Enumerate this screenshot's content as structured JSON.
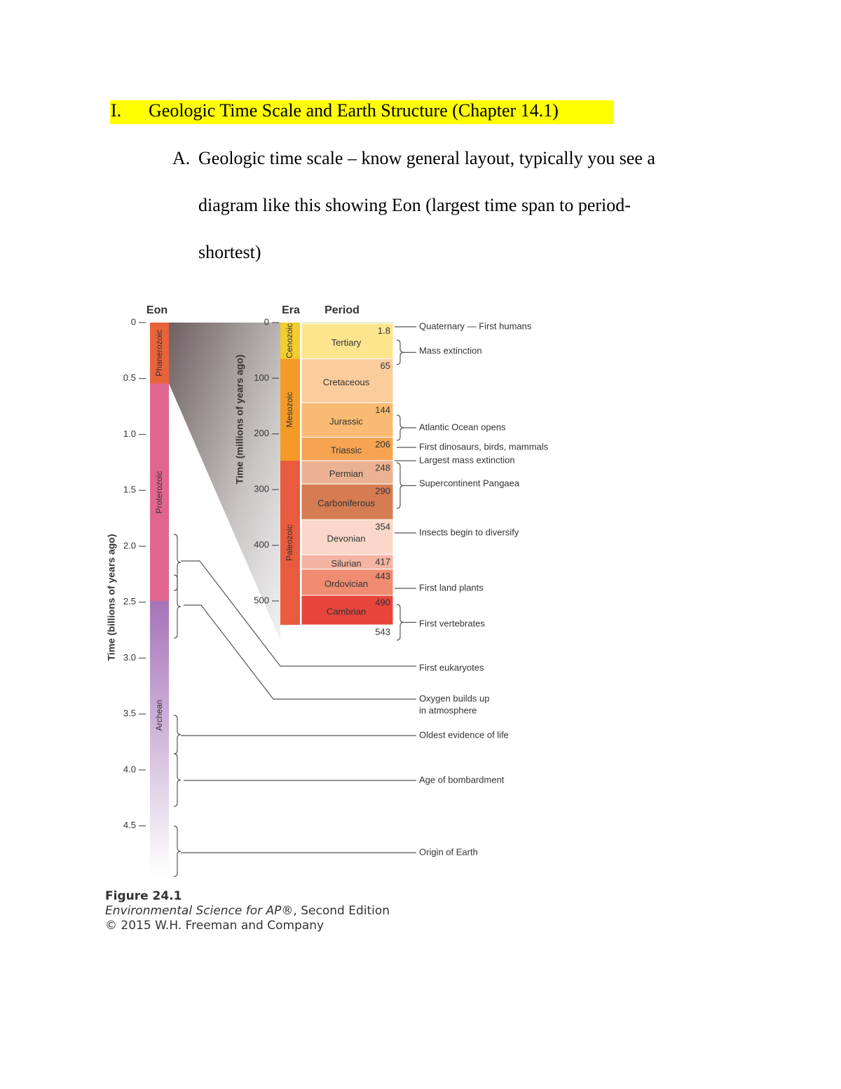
{
  "heading": {
    "number": "I.",
    "text": "Geologic Time Scale and Earth Structure (Chapter 14.1)"
  },
  "item": {
    "label": "A.",
    "lines": [
      "Geologic time scale – know general layout, typically you see a",
      "diagram like this showing Eon (largest time span to period-",
      "shortest)"
    ]
  },
  "figure": {
    "eon_header": "Eon",
    "era_header": "Era",
    "period_header": "Period",
    "left_axis_label": "Time (billions of years ago)",
    "left_ticks": [
      0,
      0.5,
      {
        "value": 1,
        "label": "1.0"
      },
      1.5,
      {
        "value": 2,
        "label": "2.0"
      },
      2.5,
      {
        "value": 3,
        "label": "3.0"
      },
      3.5,
      {
        "value": 4,
        "label": "4.0"
      },
      4.5
    ],
    "right_axis_label": "Time (millions of years ago)",
    "right_ticks": [
      0,
      100,
      200,
      300,
      400,
      500
    ],
    "eons": [
      "Phanerozoic",
      "Proterozoic",
      "Archean"
    ],
    "eras": [
      "Cenozoic",
      "Mesozoic",
      "Paleozoic"
    ],
    "boundaries": [
      1.8,
      65,
      144,
      206,
      248,
      290,
      354,
      417,
      443,
      490,
      543
    ],
    "periods": [
      "Tertiary",
      "Cretaceous",
      "Jurassic",
      "Triassic",
      "Permian",
      "Carboniferous",
      "Devonian",
      "Silurian",
      "Ordovician",
      "Cambrian"
    ],
    "events": [
      [
        "Quaternary — First humans"
      ],
      [
        "Mass extinction"
      ],
      [
        "Atlantic Ocean opens"
      ],
      [
        "First dinosaurs, birds, mammals"
      ],
      [
        "Largest mass extinction"
      ],
      [
        "Supercontinent Pangaea"
      ],
      [
        "Insects begin to diversify"
      ],
      [
        "First land plants"
      ],
      [
        "First vertebrates"
      ],
      [
        "First eukaryotes"
      ],
      [
        "Oxygen builds up",
        "in atmosphere"
      ],
      [
        "Oldest evidence of life"
      ],
      [
        "Age of bombardment"
      ],
      [
        "Origin of Earth"
      ]
    ],
    "caption": {
      "title": "Figure 24.1",
      "book": "Environmental Science for AP®",
      "edition": ", Second Edition",
      "copyright": "© 2015 W.H. Freeman and Company"
    }
  }
}
